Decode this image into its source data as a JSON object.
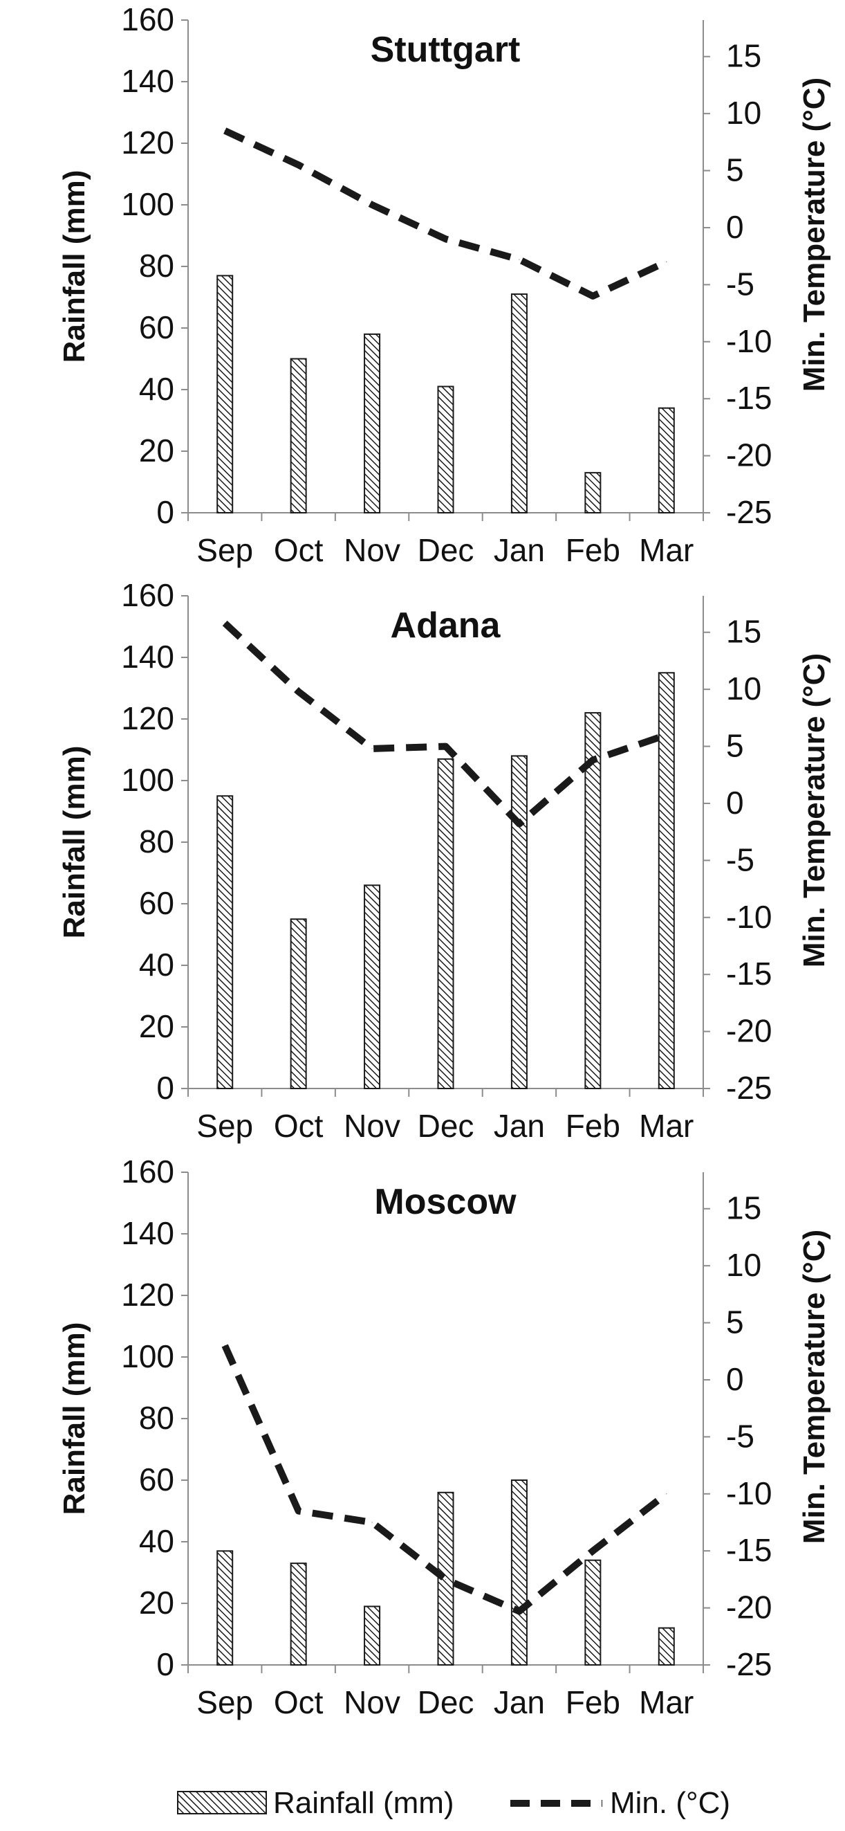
{
  "chart_data": [
    {
      "type": "bar+line",
      "title": "Stuttgart",
      "categories": [
        "Sep",
        "Oct",
        "Nov",
        "Dec",
        "Jan",
        "Feb",
        "Mar"
      ],
      "series": [
        {
          "name": "Rainfall (mm)",
          "type": "bar",
          "axis": "left",
          "values": [
            77,
            50,
            58,
            41,
            71,
            13,
            34
          ]
        },
        {
          "name": "Min. (°C)",
          "type": "line",
          "axis": "right",
          "values": [
            8.5,
            5.5,
            2,
            -1,
            -2.8,
            -6,
            -3
          ]
        }
      ],
      "ylabel_left": "Rainfall (mm)",
      "ylabel_right": "Min. Temperature (°C)",
      "ylim_left": [
        0,
        160
      ],
      "ylim_right": [
        -25,
        18.2
      ],
      "yticks_left": [
        "0",
        "20",
        "40",
        "60",
        "80",
        "100",
        "120",
        "140",
        "160"
      ],
      "yticks_right": [
        "-25",
        "-20",
        "-15",
        "-10",
        "-5",
        "0",
        "5",
        "10",
        "15"
      ]
    },
    {
      "type": "bar+line",
      "title": "Adana",
      "categories": [
        "Sep",
        "Oct",
        "Nov",
        "Dec",
        "Jan",
        "Feb",
        "Mar"
      ],
      "series": [
        {
          "name": "Rainfall (mm)",
          "type": "bar",
          "axis": "left",
          "values": [
            95,
            55,
            66,
            107,
            108,
            122,
            135
          ]
        },
        {
          "name": "Min. (°C)",
          "type": "line",
          "axis": "right",
          "values": [
            15.8,
            9.8,
            4.8,
            5,
            -1.8,
            3.8,
            6
          ]
        }
      ],
      "ylabel_left": "Rainfall (mm)",
      "ylabel_right": "Min. Temperature (°C)",
      "ylim_left": [
        0,
        160
      ],
      "ylim_right": [
        -25,
        18.2
      ],
      "yticks_left": [
        "0",
        "20",
        "40",
        "60",
        "80",
        "100",
        "120",
        "140",
        "160"
      ],
      "yticks_right": [
        "-25",
        "-20",
        "-15",
        "-10",
        "-5",
        "0",
        "5",
        "10",
        "15"
      ]
    },
    {
      "type": "bar+line",
      "title": "Moscow",
      "categories": [
        "Sep",
        "Oct",
        "Nov",
        "Dec",
        "Jan",
        "Feb",
        "Mar"
      ],
      "series": [
        {
          "name": "Rainfall (mm)",
          "type": "bar",
          "axis": "left",
          "values": [
            37,
            33,
            19,
            56,
            60,
            34,
            12
          ]
        },
        {
          "name": "Min. (°C)",
          "type": "line",
          "axis": "right",
          "values": [
            3,
            -11.5,
            -12.5,
            -17.5,
            -20.3,
            -15,
            -10
          ]
        }
      ],
      "ylabel_left": "Rainfall (mm)",
      "ylabel_right": "Min. Temperature (°C)",
      "ylim_left": [
        0,
        160
      ],
      "ylim_right": [
        -25,
        18.2
      ],
      "yticks_left": [
        "0",
        "20",
        "40",
        "60",
        "80",
        "100",
        "120",
        "140",
        "160"
      ],
      "yticks_right": [
        "-25",
        "-20",
        "-15",
        "-10",
        "-5",
        "0",
        "5",
        "10",
        "15"
      ]
    }
  ],
  "legend": {
    "rainfall_label": "Rainfall (mm)",
    "min_label": "Min. (°C)",
    "placement": "bottom"
  },
  "colors": {
    "line": "#1a1a1a",
    "bar_stroke": "#1a1a1a",
    "bar_fill": "#ffffff",
    "axis": "#8c8c8c",
    "text": "#111111"
  }
}
